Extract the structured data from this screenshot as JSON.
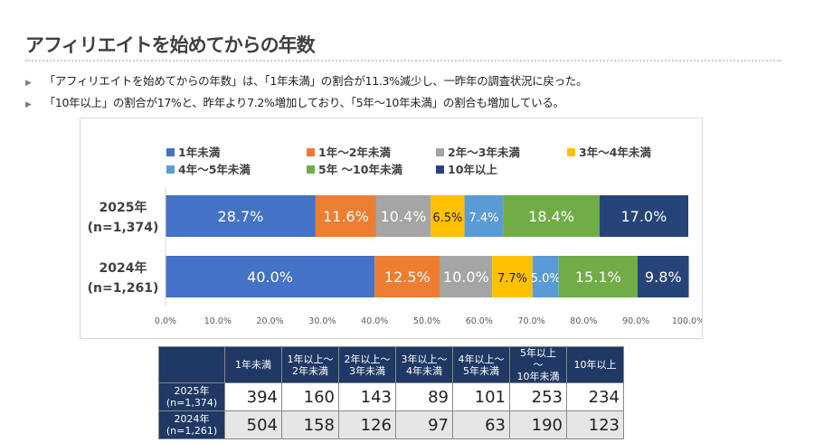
{
  "title": "アフィリエイトを始めてからの年数",
  "bullets": [
    "「アフィリエイトを始めてからの年数」は、「1年未満」の割合が11.3%減少し、一昨年の調査状況に戻った。",
    "「10年以上」の割合が17%と、昨年より7.2%増加しており、「5年～10年未満」の割合も増加している。"
  ],
  "chart_data": {
    "type": "bar",
    "orientation": "horizontal-stacked-100",
    "categories": [
      "2025年\n(n=1,374)",
      "2024年\n(n=1,261)"
    ],
    "category_lines": [
      [
        "2025年",
        "(n=1,374)"
      ],
      [
        "2024年",
        "(n=1,261)"
      ]
    ],
    "series": [
      {
        "name": "1年未満",
        "color": "#4472C4",
        "values": [
          28.7,
          40.0
        ]
      },
      {
        "name": "1年～2年未満",
        "color": "#ED7D31",
        "values": [
          11.6,
          12.5
        ]
      },
      {
        "name": "2年～3年未満",
        "color": "#A5A5A5",
        "values": [
          10.4,
          10.0
        ]
      },
      {
        "name": "3年～4年未満",
        "color": "#FFC000",
        "values": [
          6.5,
          7.7
        ]
      },
      {
        "name": "4年～5年未満",
        "color": "#5B9BD5",
        "values": [
          7.4,
          5.0
        ]
      },
      {
        "name": "5年 ～10年未満",
        "color": "#70AD47",
        "values": [
          18.4,
          15.1
        ]
      },
      {
        "name": "10年以上",
        "color": "#264478",
        "values": [
          17.0,
          9.8
        ]
      }
    ],
    "xlim": [
      0,
      100
    ],
    "xticks": [
      "0.0%",
      "10.0%",
      "20.0%",
      "30.0%",
      "40.0%",
      "50.0%",
      "60.0%",
      "70.0%",
      "80.0%",
      "90.0%",
      "100.0%"
    ],
    "grid": false,
    "legend": "top"
  },
  "table": {
    "headers": [
      [
        "1年未満"
      ],
      [
        "1年以上～",
        "2年未満"
      ],
      [
        "2年以上～",
        "3年未満"
      ],
      [
        "3年以上～",
        "4年未満"
      ],
      [
        "4年以上～",
        "5年未満"
      ],
      [
        "5年以上 ～",
        "10年未満"
      ],
      [
        "10年以上"
      ]
    ],
    "rows": [
      {
        "label": [
          "2025年",
          "(n=1,374)"
        ],
        "values": [
          "394",
          "160",
          "143",
          "89",
          "101",
          "253",
          "234"
        ]
      },
      {
        "label": [
          "2024年",
          "(n=1,261)"
        ],
        "values": [
          "504",
          "158",
          "126",
          "97",
          "63",
          "190",
          "123"
        ]
      }
    ]
  }
}
